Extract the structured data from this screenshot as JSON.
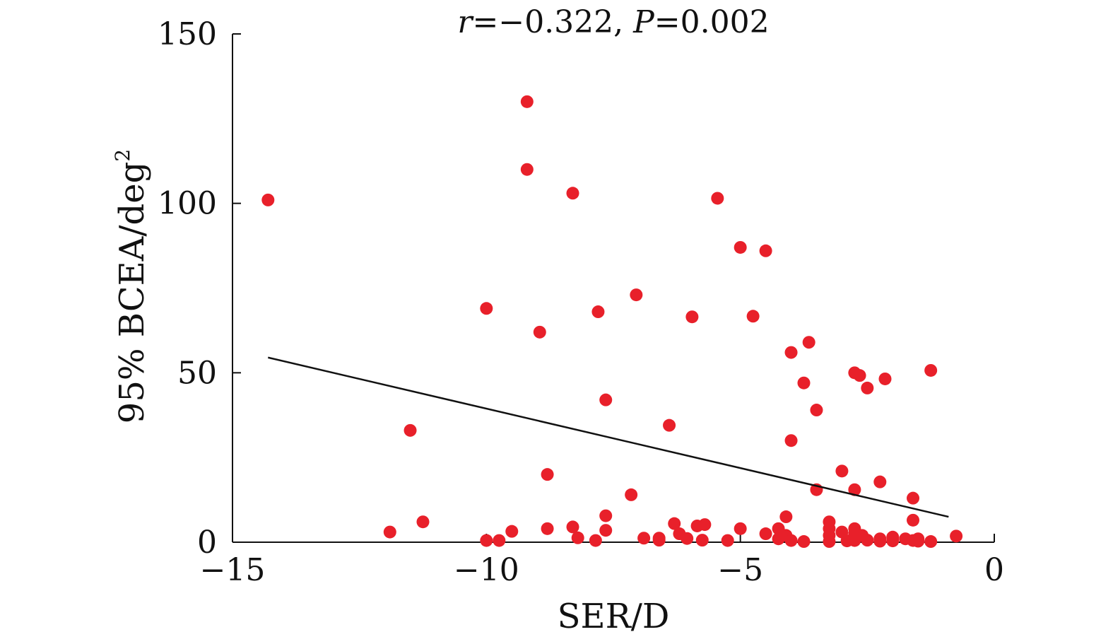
{
  "chart_data": {
    "type": "scatter",
    "title": "",
    "annotation": {
      "r_symbol": "r",
      "r_value": "=−0.322, ",
      "p_symbol": "P",
      "p_value": "=0.002"
    },
    "xlabel": "SER/D",
    "ylabel": "95% BCEA/deg",
    "ylabel_superscript": "2",
    "xlim": [
      -15,
      0
    ],
    "ylim": [
      0,
      150
    ],
    "x_ticks": [
      -15,
      -10,
      -5,
      0
    ],
    "x_tick_labels": [
      "−15",
      "−10",
      "−5",
      "0"
    ],
    "y_ticks": [
      0,
      50,
      100,
      150
    ],
    "y_tick_labels": [
      "0",
      "50",
      "100",
      "150"
    ],
    "grid": false,
    "legend": "none",
    "point_color": "#e8202a",
    "line_color": "#111111",
    "trendline": {
      "x": [
        -14.3,
        -0.9
      ],
      "y": [
        54.5,
        7.5
      ]
    },
    "points": [
      {
        "x": -14.3,
        "y": 101
      },
      {
        "x": -11.5,
        "y": 33
      },
      {
        "x": -11.9,
        "y": 3
      },
      {
        "x": -11.25,
        "y": 6
      },
      {
        "x": -10.0,
        "y": 69
      },
      {
        "x": -10.0,
        "y": 0.5
      },
      {
        "x": -9.75,
        "y": 0.5
      },
      {
        "x": -9.5,
        "y": 3.2
      },
      {
        "x": -9.2,
        "y": 130
      },
      {
        "x": -9.2,
        "y": 110
      },
      {
        "x": -8.95,
        "y": 62
      },
      {
        "x": -8.8,
        "y": 20
      },
      {
        "x": -8.8,
        "y": 4
      },
      {
        "x": -8.3,
        "y": 103
      },
      {
        "x": -8.3,
        "y": 4.5
      },
      {
        "x": -8.2,
        "y": 1.3
      },
      {
        "x": -7.8,
        "y": 68
      },
      {
        "x": -7.85,
        "y": 0.5
      },
      {
        "x": -7.65,
        "y": 42
      },
      {
        "x": -7.65,
        "y": 7.8
      },
      {
        "x": -7.65,
        "y": 3.5
      },
      {
        "x": -7.05,
        "y": 73
      },
      {
        "x": -7.15,
        "y": 14
      },
      {
        "x": -6.9,
        "y": 1.2
      },
      {
        "x": -6.6,
        "y": 1.2
      },
      {
        "x": -6.6,
        "y": 0.6
      },
      {
        "x": -6.4,
        "y": 34.5
      },
      {
        "x": -6.3,
        "y": 5.5
      },
      {
        "x": -6.2,
        "y": 2.5
      },
      {
        "x": -6.05,
        "y": 1.1
      },
      {
        "x": -5.95,
        "y": 66.5
      },
      {
        "x": -5.85,
        "y": 4.8
      },
      {
        "x": -5.7,
        "y": 5.2
      },
      {
        "x": -5.75,
        "y": 0.6
      },
      {
        "x": -5.45,
        "y": 101.5
      },
      {
        "x": -5.25,
        "y": 0.5
      },
      {
        "x": -5.0,
        "y": 87
      },
      {
        "x": -5.0,
        "y": 4
      },
      {
        "x": -4.75,
        "y": 66.7
      },
      {
        "x": -4.5,
        "y": 86
      },
      {
        "x": -4.5,
        "y": 2.5
      },
      {
        "x": -4.25,
        "y": 4
      },
      {
        "x": -4.25,
        "y": 1.0
      },
      {
        "x": -4.1,
        "y": 7.5
      },
      {
        "x": -4.1,
        "y": 2.0
      },
      {
        "x": -4.0,
        "y": 56
      },
      {
        "x": -4.0,
        "y": 30
      },
      {
        "x": -4.0,
        "y": 0.5
      },
      {
        "x": -3.75,
        "y": 47
      },
      {
        "x": -3.75,
        "y": 0.2
      },
      {
        "x": -3.65,
        "y": 59
      },
      {
        "x": -3.5,
        "y": 39
      },
      {
        "x": -3.5,
        "y": 15.5
      },
      {
        "x": -3.25,
        "y": 6
      },
      {
        "x": -3.25,
        "y": 4.0
      },
      {
        "x": -3.25,
        "y": 2.0
      },
      {
        "x": -3.25,
        "y": 0.2
      },
      {
        "x": -3.0,
        "y": 21
      },
      {
        "x": -3.0,
        "y": 3.0
      },
      {
        "x": -2.9,
        "y": 0.4
      },
      {
        "x": -2.75,
        "y": 50
      },
      {
        "x": -2.75,
        "y": 15.5
      },
      {
        "x": -2.75,
        "y": 4
      },
      {
        "x": -2.75,
        "y": 2.5
      },
      {
        "x": -2.75,
        "y": 0.5
      },
      {
        "x": -2.65,
        "y": 49.2
      },
      {
        "x": -2.6,
        "y": 2.0
      },
      {
        "x": -2.5,
        "y": 45.5
      },
      {
        "x": -2.5,
        "y": 0.6
      },
      {
        "x": -2.25,
        "y": 17.8
      },
      {
        "x": -2.25,
        "y": 1.0
      },
      {
        "x": -2.25,
        "y": 0.3
      },
      {
        "x": -2.15,
        "y": 48.2
      },
      {
        "x": -2.0,
        "y": 1.5
      },
      {
        "x": -2.0,
        "y": 0.4
      },
      {
        "x": -1.75,
        "y": 1.0
      },
      {
        "x": -1.6,
        "y": 13
      },
      {
        "x": -1.6,
        "y": 6.5
      },
      {
        "x": -1.6,
        "y": 0.5
      },
      {
        "x": -1.5,
        "y": 1.0
      },
      {
        "x": -1.5,
        "y": 0.3
      },
      {
        "x": -1.25,
        "y": 50.7
      },
      {
        "x": -1.25,
        "y": 0.2
      },
      {
        "x": -0.75,
        "y": 1.8
      }
    ]
  }
}
